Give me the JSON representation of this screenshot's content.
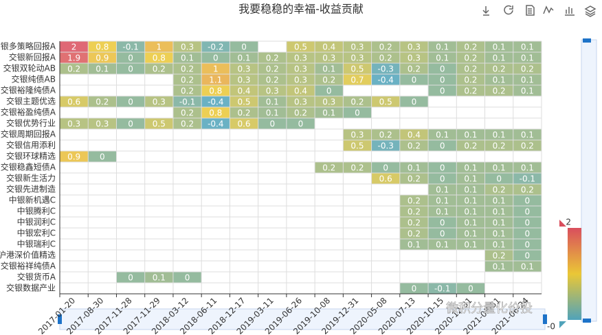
{
  "chart_data": {
    "type": "heatmap",
    "title": "我要稳稳的幸福-收益贡献",
    "x": [
      "2017-01-20",
      "2017-08-30",
      "2017-11-28",
      "2017-11-29",
      "2018-03-12",
      "2018-06-11",
      "2018-12-17",
      "2019-03-11",
      "2019-06-26",
      "2019-10-08",
      "2019-12-31",
      "2020-05-08",
      "2020-07-13",
      "2020-10-15",
      "2020-12-31",
      "2021-03-31",
      "2021-06-24"
    ],
    "y": [
      "交银多策略回报A",
      "交银新回报A",
      "交银双轮动AB",
      "交银纯债AB",
      "交银裕隆纯债A",
      "交银主题优选",
      "交银裕盈纯债A",
      "交银优势行业",
      "交银周期回报A",
      "交银信用添利",
      "交银环球精选",
      "交银稳鑫短债A",
      "交银新生活力",
      "交银先进制造",
      "中银新机遇C",
      "中银腾利C",
      "中银润利C",
      "中银宏利C",
      "中银瑞利C",
      "沪港深价值精选",
      "交银裕祥纯债A",
      "交银货币A",
      "交银数据产业"
    ],
    "values": [
      [
        2,
        0.8,
        -0.1,
        1,
        0.3,
        -0.2,
        0,
        null,
        0.5,
        0.4,
        0.3,
        0.2,
        0.3,
        0.1,
        0.2,
        0.1,
        0.1
      ],
      [
        1.9,
        0.9,
        0,
        0.8,
        0.1,
        0,
        0.1,
        0.2,
        0.3,
        0.3,
        0.3,
        0.2,
        0.3,
        0.1,
        0.2,
        0.1,
        0.1
      ],
      [
        0.2,
        0.1,
        0,
        0.2,
        0.2,
        1,
        0.3,
        0.2,
        0.3,
        0.1,
        0.5,
        -0.3,
        0.2,
        0,
        0.2,
        0.2,
        0.2
      ],
      [
        null,
        null,
        null,
        null,
        0.2,
        1.1,
        0.3,
        0.2,
        0.3,
        0.2,
        0.7,
        -0.4,
        0,
        0,
        0.2,
        0.1,
        0.1
      ],
      [
        null,
        null,
        null,
        null,
        0.2,
        0.8,
        0.4,
        0.3,
        0.4,
        0,
        null,
        null,
        null,
        0,
        0.2,
        0.2,
        0.1
      ],
      [
        0.6,
        0.2,
        0,
        0.3,
        -0.1,
        -0.4,
        0.5,
        0.1,
        0.3,
        0.3,
        0.2,
        0.5,
        0,
        null,
        null,
        null,
        null
      ],
      [
        null,
        null,
        null,
        null,
        0.2,
        0.8,
        0.2,
        0.1,
        0.2,
        0.1,
        0,
        null,
        null,
        null,
        null,
        null,
        null
      ],
      [
        0.3,
        0.3,
        0,
        0.5,
        0.2,
        -0.4,
        0.6,
        0,
        0,
        null,
        null,
        null,
        null,
        null,
        null,
        null,
        null
      ],
      [
        null,
        null,
        null,
        null,
        null,
        null,
        null,
        null,
        null,
        null,
        0.3,
        0.2,
        0.4,
        0.1,
        0.1,
        0.1,
        0.1
      ],
      [
        null,
        null,
        null,
        null,
        null,
        null,
        null,
        null,
        null,
        null,
        0.5,
        -0.3,
        0.2,
        0,
        0.2,
        0.2,
        0.2
      ],
      [
        0.9,
        0,
        null,
        null,
        null,
        null,
        null,
        null,
        null,
        null,
        null,
        null,
        null,
        null,
        null,
        null,
        null
      ],
      [
        null,
        null,
        null,
        null,
        null,
        null,
        null,
        null,
        null,
        0.2,
        0.2,
        0,
        0.1,
        0,
        0.1,
        0.1,
        0.1
      ],
      [
        null,
        null,
        null,
        null,
        null,
        null,
        null,
        null,
        null,
        null,
        null,
        0.6,
        0.2,
        0,
        0.1,
        0,
        -0.1
      ],
      [
        null,
        null,
        null,
        null,
        null,
        null,
        null,
        null,
        null,
        null,
        null,
        null,
        null,
        0.1,
        0.1,
        0.2,
        0.2
      ],
      [
        null,
        null,
        null,
        null,
        null,
        null,
        null,
        null,
        null,
        null,
        null,
        null,
        0.2,
        0.1,
        0.1,
        0.1,
        0
      ],
      [
        null,
        null,
        null,
        null,
        null,
        null,
        null,
        null,
        null,
        null,
        null,
        null,
        0.2,
        0.1,
        0.1,
        0.1,
        0
      ],
      [
        null,
        null,
        null,
        null,
        null,
        null,
        null,
        null,
        null,
        null,
        null,
        null,
        0.2,
        0,
        0.1,
        0.1,
        0
      ],
      [
        null,
        null,
        null,
        null,
        null,
        null,
        null,
        null,
        null,
        null,
        null,
        null,
        0.2,
        0,
        0.1,
        0.1,
        0
      ],
      [
        null,
        null,
        null,
        null,
        null,
        null,
        null,
        null,
        null,
        null,
        null,
        null,
        0.1,
        0.1,
        0.1,
        0.1,
        0
      ],
      [
        null,
        null,
        null,
        null,
        null,
        null,
        null,
        null,
        null,
        null,
        null,
        null,
        null,
        null,
        null,
        0.2,
        0
      ],
      [
        null,
        null,
        null,
        null,
        null,
        null,
        null,
        null,
        null,
        null,
        null,
        null,
        null,
        null,
        null,
        0.1,
        0.1
      ],
      [
        null,
        null,
        0,
        0.1,
        0,
        null,
        null,
        null,
        null,
        null,
        null,
        null,
        null,
        null,
        null,
        null,
        null
      ],
      [
        null,
        null,
        null,
        null,
        null,
        null,
        null,
        null,
        null,
        null,
        null,
        null,
        0,
        -0.1,
        0,
        null,
        null
      ]
    ],
    "visual_map": {
      "min": {
        "value": -0.4,
        "label": "-0"
      },
      "max": 2,
      "colors": [
        "#50a3ba",
        "#eac736",
        "#d94e5d"
      ]
    },
    "watermark": "微积分量化价投"
  }
}
